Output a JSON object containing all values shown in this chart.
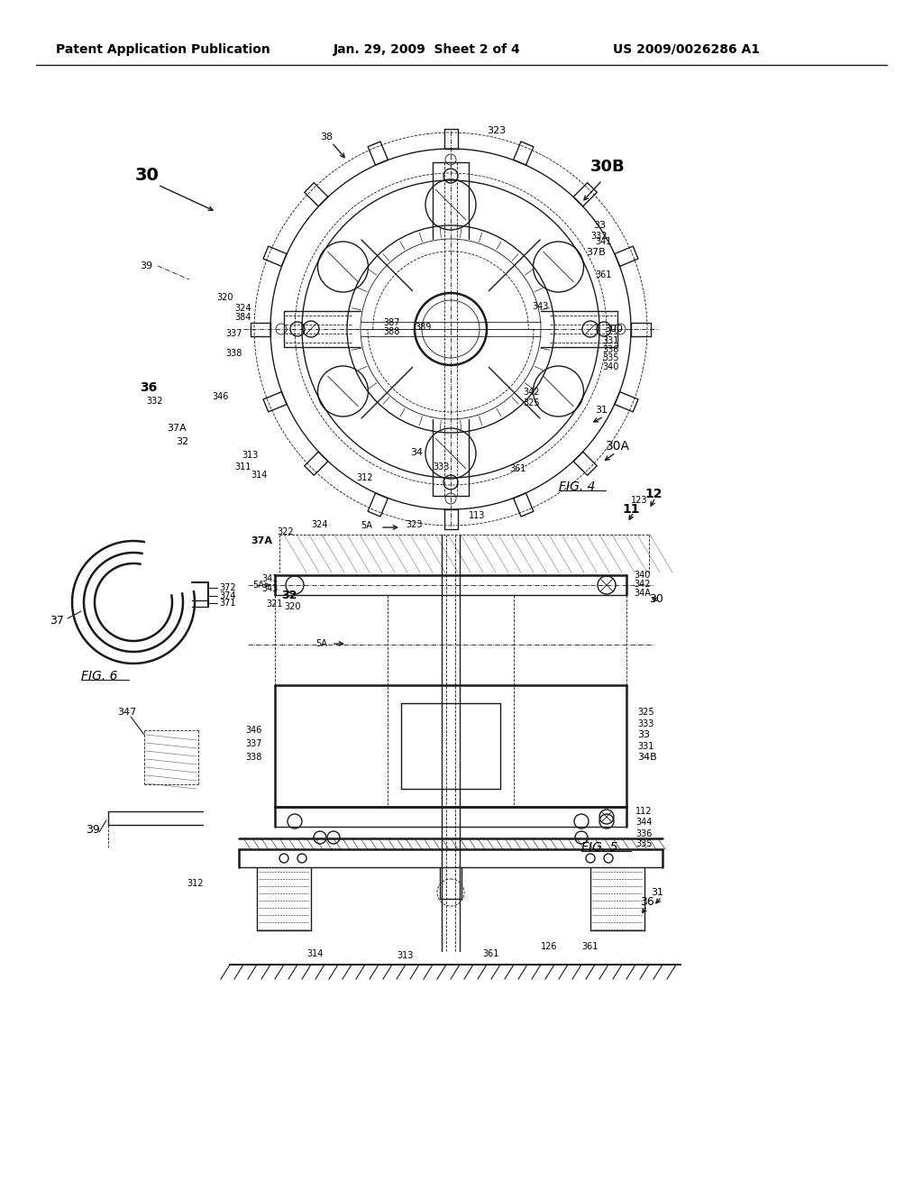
{
  "background_color": "#ffffff",
  "header_left": "Patent Application Publication",
  "header_mid": "Jan. 29, 2009  Sheet 2 of 4",
  "header_right": "US 2009/0026286 A1",
  "fig4_label": "FIG. 4",
  "fig5_label": "FIG. 5",
  "fig6_label": "FIG. 6",
  "line_color": "#1a1a1a",
  "lw": 1.0,
  "blw": 1.8,
  "tlw": 0.6
}
